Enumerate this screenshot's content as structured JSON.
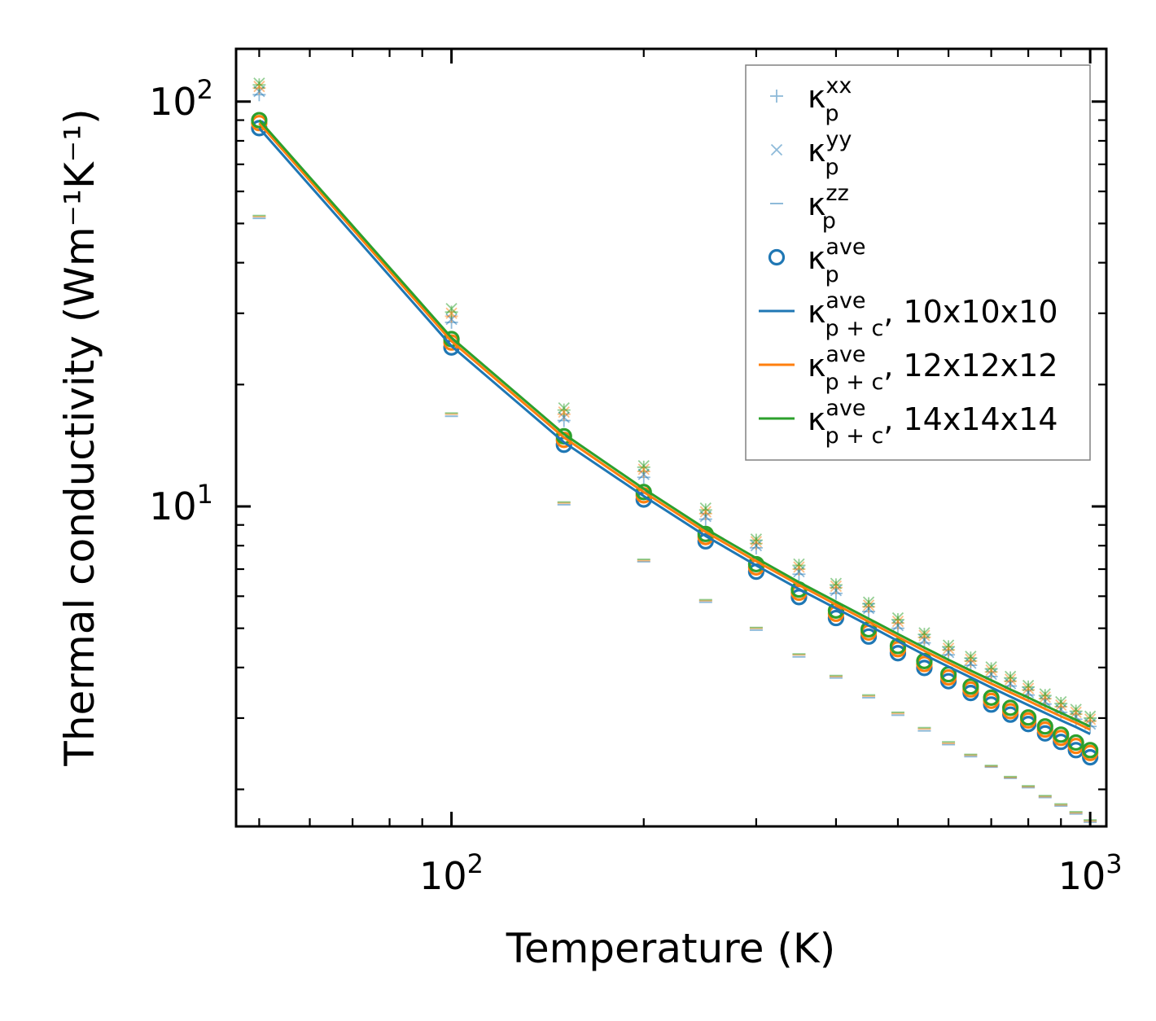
{
  "chart_data": {
    "type": "scatter",
    "xscale": "log",
    "yscale": "log",
    "xlim": [
      46,
      1060
    ],
    "ylim": [
      1.62,
      135
    ],
    "xlabel": "Temperature (K)",
    "ylabel": "Thermal conductivity (Wm⁻¹K⁻¹)",
    "xticks": [
      {
        "value": 100,
        "base": "10",
        "exp": "2"
      },
      {
        "value": 1000,
        "base": "10",
        "exp": "3"
      }
    ],
    "yticks": [
      {
        "value": 10,
        "base": "10",
        "exp": "1"
      },
      {
        "value": 100,
        "base": "10",
        "exp": "2"
      }
    ],
    "legend_position": "top-right",
    "temperatures": [
      50,
      100,
      150,
      200,
      250,
      300,
      350,
      400,
      450,
      500,
      550,
      600,
      650,
      700,
      750,
      800,
      850,
      900,
      950,
      1000
    ],
    "colors": {
      "blue": "#1f77b4",
      "orange": "#ff7f0e",
      "green": "#2ca02c"
    },
    "series": [
      {
        "name": "k_xx_10",
        "kind": "plus",
        "color": "#1f77b4",
        "values": [
          104,
          28.5,
          16.3,
          11.8,
          9.3,
          7.9,
          6.8,
          6.1,
          5.5,
          5.0,
          4.6,
          4.3,
          4.05,
          3.8,
          3.6,
          3.42,
          3.25,
          3.1,
          2.98,
          2.86
        ]
      },
      {
        "name": "k_xx_12",
        "kind": "plus",
        "color": "#ff7f0e",
        "values": [
          108,
          29.5,
          16.9,
          12.2,
          9.6,
          8.1,
          7.0,
          6.3,
          5.65,
          5.15,
          4.75,
          4.42,
          4.15,
          3.9,
          3.7,
          3.52,
          3.35,
          3.2,
          3.07,
          2.95
        ]
      },
      {
        "name": "k_xx_14",
        "kind": "plus",
        "color": "#2ca02c",
        "values": [
          110,
          30.2,
          17.3,
          12.5,
          9.8,
          8.25,
          7.15,
          6.4,
          5.75,
          5.25,
          4.83,
          4.5,
          4.22,
          3.97,
          3.77,
          3.58,
          3.41,
          3.26,
          3.12,
          3.0
        ]
      },
      {
        "name": "k_yy_10",
        "kind": "cross",
        "color": "#1f77b4",
        "values": [
          106,
          29.0,
          16.6,
          12.0,
          9.45,
          8.0,
          6.9,
          6.2,
          5.6,
          5.08,
          4.68,
          4.36,
          4.1,
          3.85,
          3.65,
          3.47,
          3.3,
          3.15,
          3.02,
          2.9
        ]
      },
      {
        "name": "k_yy_12",
        "kind": "cross",
        "color": "#ff7f0e",
        "values": [
          109,
          30.0,
          17.1,
          12.35,
          9.7,
          8.18,
          7.08,
          6.35,
          5.7,
          5.2,
          4.8,
          4.46,
          4.19,
          3.94,
          3.74,
          3.55,
          3.38,
          3.23,
          3.1,
          2.98
        ]
      },
      {
        "name": "k_yy_14",
        "kind": "cross",
        "color": "#2ca02c",
        "values": [
          111,
          30.8,
          17.5,
          12.6,
          9.9,
          8.3,
          7.2,
          6.45,
          5.8,
          5.3,
          4.87,
          4.54,
          4.26,
          4.01,
          3.8,
          3.61,
          3.44,
          3.29,
          3.15,
          3.03
        ]
      },
      {
        "name": "k_zz_10",
        "kind": "dash",
        "color": "#1f77b4",
        "values": [
          51.5,
          16.7,
          10.1,
          7.3,
          5.8,
          4.95,
          4.25,
          3.77,
          3.37,
          3.05,
          2.79,
          2.58,
          2.41,
          2.27,
          2.13,
          2.02,
          1.91,
          1.82,
          1.74,
          1.66
        ]
      },
      {
        "name": "k_zz_12",
        "kind": "dash",
        "color": "#ff7f0e",
        "values": [
          52.0,
          16.9,
          10.2,
          7.35,
          5.85,
          5.0,
          4.3,
          3.8,
          3.4,
          3.08,
          2.82,
          2.6,
          2.43,
          2.28,
          2.14,
          2.03,
          1.92,
          1.83,
          1.75,
          1.67
        ]
      },
      {
        "name": "k_zz_14",
        "kind": "dash",
        "color": "#2ca02c",
        "values": [
          52.3,
          17.0,
          10.25,
          7.4,
          5.88,
          5.02,
          4.32,
          3.82,
          3.42,
          3.1,
          2.84,
          2.62,
          2.44,
          2.29,
          2.15,
          2.04,
          1.93,
          1.84,
          1.76,
          1.68
        ]
      },
      {
        "name": "k_ave_10",
        "kind": "circle",
        "color": "#1f77b4",
        "values": [
          86,
          24.7,
          14.2,
          10.4,
          8.2,
          6.9,
          5.97,
          5.3,
          4.77,
          4.34,
          3.99,
          3.7,
          3.46,
          3.24,
          3.06,
          2.9,
          2.75,
          2.62,
          2.5,
          2.4
        ]
      },
      {
        "name": "k_ave_12",
        "kind": "circle",
        "color": "#ff7f0e",
        "values": [
          88.5,
          25.4,
          14.6,
          10.65,
          8.4,
          7.07,
          6.12,
          5.43,
          4.88,
          4.44,
          4.08,
          3.78,
          3.53,
          3.31,
          3.12,
          2.96,
          2.81,
          2.68,
          2.56,
          2.46
        ]
      },
      {
        "name": "k_ave_14",
        "kind": "circle",
        "color": "#2ca02c",
        "values": [
          90,
          25.9,
          14.9,
          10.85,
          8.55,
          7.2,
          6.23,
          5.53,
          4.97,
          4.52,
          4.15,
          3.85,
          3.59,
          3.37,
          3.18,
          3.01,
          2.86,
          2.73,
          2.61,
          2.5
        ]
      },
      {
        "name": "k_pc_10",
        "kind": "line",
        "color": "#1f77b4",
        "values": [
          86,
          24.9,
          14.4,
          10.6,
          8.45,
          7.15,
          6.25,
          5.6,
          5.08,
          4.65,
          4.3,
          4.02,
          3.78,
          3.57,
          3.39,
          3.23,
          3.09,
          2.96,
          2.85,
          2.74
        ]
      },
      {
        "name": "k_pc_12",
        "kind": "line",
        "color": "#ff7f0e",
        "values": [
          88.5,
          25.6,
          14.8,
          10.85,
          8.65,
          7.32,
          6.4,
          5.72,
          5.19,
          4.76,
          4.4,
          4.11,
          3.86,
          3.65,
          3.47,
          3.31,
          3.16,
          3.03,
          2.92,
          2.81
        ]
      },
      {
        "name": "k_pc_14",
        "kind": "line",
        "color": "#2ca02c",
        "values": [
          90,
          26.1,
          15.1,
          11.05,
          8.8,
          7.45,
          6.5,
          5.82,
          5.28,
          4.84,
          4.48,
          4.18,
          3.93,
          3.72,
          3.53,
          3.37,
          3.22,
          3.09,
          2.97,
          2.86
        ]
      }
    ],
    "legend": [
      {
        "kind": "plus",
        "color": "#1f77b4",
        "base": "κ",
        "sup": "xx",
        "sub": "p",
        "suffix": ""
      },
      {
        "kind": "cross",
        "color": "#1f77b4",
        "base": "κ",
        "sup": "yy",
        "sub": "p",
        "suffix": ""
      },
      {
        "kind": "dash",
        "color": "#1f77b4",
        "base": "κ",
        "sup": "zz",
        "sub": "p",
        "suffix": ""
      },
      {
        "kind": "circle",
        "color": "#1f77b4",
        "base": "κ",
        "sup": "ave",
        "sub": "p",
        "suffix": ""
      },
      {
        "kind": "line",
        "color": "#1f77b4",
        "base": "κ",
        "sup": "ave",
        "sub": "p + c",
        "suffix": ", 10x10x10"
      },
      {
        "kind": "line",
        "color": "#ff7f0e",
        "base": "κ",
        "sup": "ave",
        "sub": "p + c",
        "suffix": ", 12x12x12"
      },
      {
        "kind": "line",
        "color": "#2ca02c",
        "base": "κ",
        "sup": "ave",
        "sub": "p + c",
        "suffix": ", 14x14x14"
      }
    ]
  }
}
